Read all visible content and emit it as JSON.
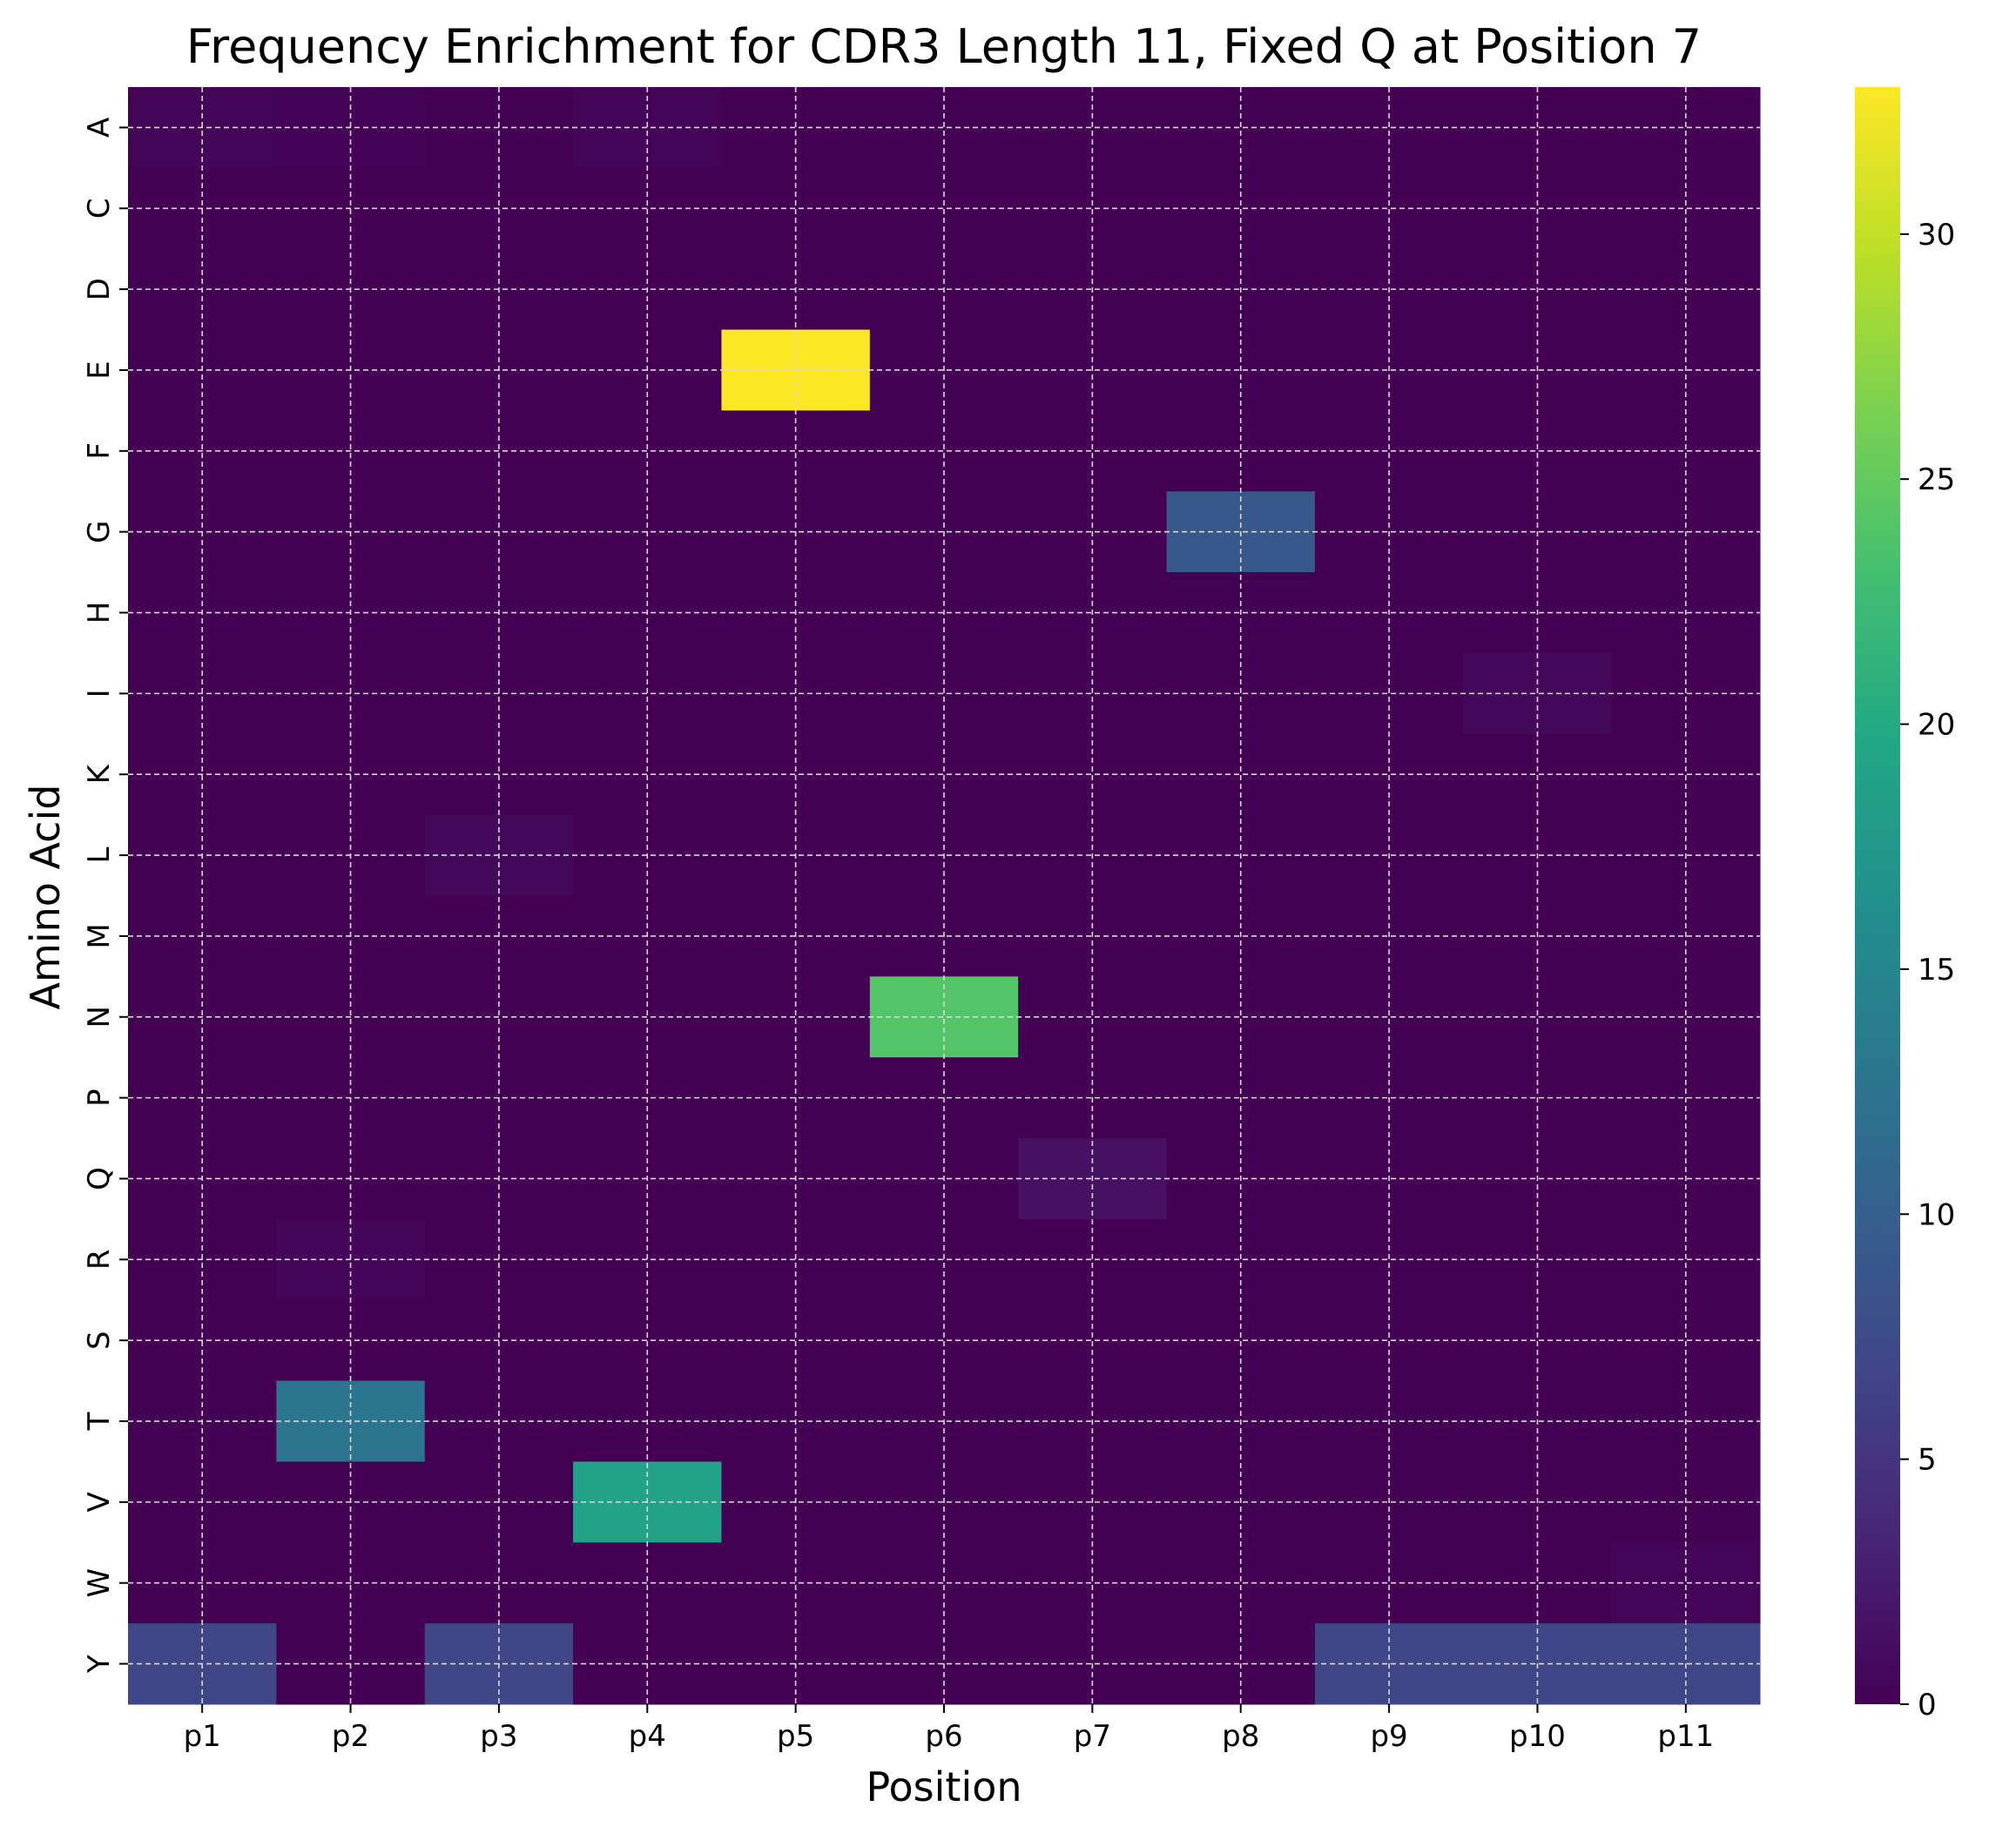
{
  "chart_data": {
    "type": "heatmap",
    "title": "Frequency Enrichment for CDR3 Length 11, Fixed Q at Position 7",
    "xlabel": "Position",
    "ylabel": "Amino Acid",
    "x": [
      "p1",
      "p2",
      "p3",
      "p4",
      "p5",
      "p6",
      "p7",
      "p8",
      "p9",
      "p10",
      "p11"
    ],
    "y": [
      "A",
      "C",
      "D",
      "E",
      "F",
      "G",
      "H",
      "I",
      "K",
      "L",
      "M",
      "N",
      "P",
      "Q",
      "R",
      "S",
      "T",
      "V",
      "W",
      "Y"
    ],
    "values": [
      [
        0.3,
        0.2,
        0,
        0.4,
        0,
        0,
        0,
        0,
        0,
        0,
        0
      ],
      [
        0,
        0,
        0,
        0,
        0,
        0,
        0,
        0,
        0,
        0,
        0
      ],
      [
        0,
        0,
        0,
        0,
        0,
        0,
        0,
        0,
        0,
        0,
        0
      ],
      [
        0,
        0,
        0,
        0,
        33,
        0,
        0,
        0,
        0,
        0,
        0
      ],
      [
        0,
        0,
        0,
        0,
        0,
        0,
        0,
        0,
        0,
        0,
        0
      ],
      [
        0,
        0,
        0,
        0,
        0,
        0,
        0,
        9,
        0,
        0,
        0
      ],
      [
        0,
        0,
        0,
        0,
        0,
        0,
        0,
        0,
        0,
        0,
        0
      ],
      [
        0,
        0,
        0,
        0,
        0,
        0,
        0,
        0,
        0,
        0.8,
        0
      ],
      [
        0,
        0,
        0,
        0,
        0,
        0,
        0,
        0,
        0,
        0,
        0
      ],
      [
        0,
        0,
        0.8,
        0,
        0,
        0,
        0,
        0,
        0,
        0,
        0
      ],
      [
        0,
        0,
        0,
        0,
        0,
        0,
        0,
        0,
        0,
        0,
        0
      ],
      [
        0,
        0,
        0,
        0,
        0,
        24,
        0,
        0,
        0,
        0,
        0
      ],
      [
        0,
        0,
        0,
        0,
        0,
        0,
        0,
        0,
        0,
        0,
        0
      ],
      [
        0,
        0,
        0,
        0,
        0,
        0,
        1.5,
        0,
        0,
        0,
        0
      ],
      [
        0,
        0.5,
        0,
        0,
        0,
        0,
        0,
        0,
        0,
        0,
        0
      ],
      [
        0,
        0,
        0,
        0,
        0,
        0,
        0,
        0,
        0,
        0,
        0
      ],
      [
        0,
        13,
        0,
        0,
        0,
        0,
        0,
        0,
        0,
        0,
        0
      ],
      [
        0,
        0,
        0,
        19,
        0,
        0,
        0,
        0,
        0,
        0,
        0
      ],
      [
        0,
        0,
        0,
        0,
        0,
        0,
        0,
        0,
        0,
        0,
        0.3
      ],
      [
        7,
        0,
        7,
        0,
        0,
        0,
        0,
        0,
        7,
        7,
        7
      ]
    ],
    "colorbar": {
      "colormap": "viridis",
      "min": 0,
      "max": 33,
      "ticks": [
        0,
        5,
        10,
        15,
        20,
        25,
        30
      ]
    },
    "grid": true
  }
}
